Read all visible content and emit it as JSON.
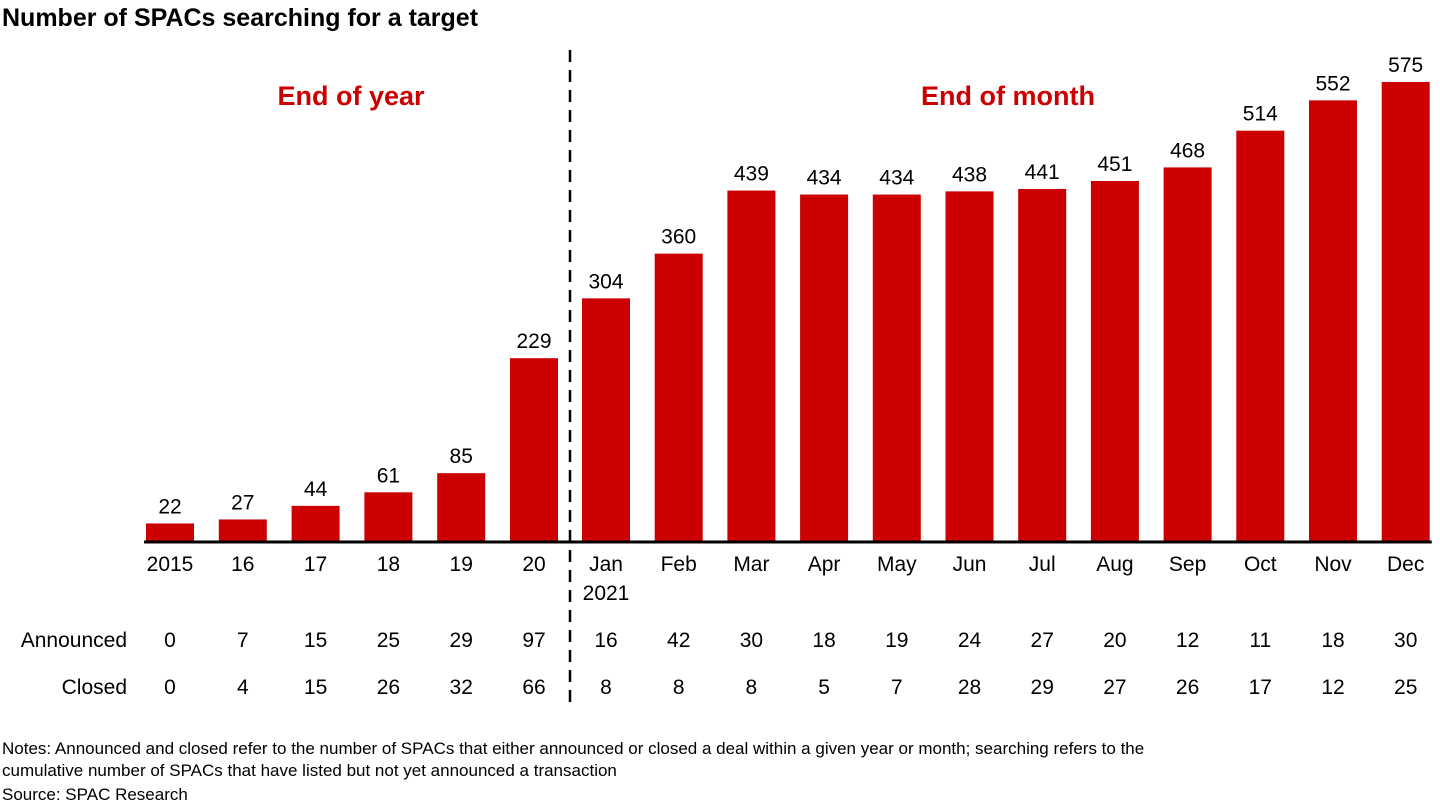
{
  "title": "Number of SPACs searching for a target",
  "colors": {
    "bar": "#cc0000",
    "section_label": "#cc0000",
    "text": "#000000"
  },
  "chart_data": {
    "type": "bar",
    "title": "Number of SPACs searching for a target",
    "xlabel": "",
    "ylabel": "",
    "ylim": [
      0,
      575
    ],
    "grid": false,
    "sections": [
      {
        "label": "End of year",
        "start": 0,
        "end": 5
      },
      {
        "label": "End of month",
        "start": 6,
        "end": 17
      }
    ],
    "categories": [
      "2015",
      "16",
      "17",
      "18",
      "19",
      "20",
      "Jan\n2021",
      "Feb",
      "Mar",
      "Apr",
      "May",
      "Jun",
      "Jul",
      "Aug",
      "Sep",
      "Oct",
      "Nov",
      "Dec"
    ],
    "series": [
      {
        "name": "Searching",
        "values": [
          22,
          27,
          44,
          61,
          85,
          229,
          304,
          360,
          439,
          434,
          434,
          438,
          441,
          451,
          468,
          514,
          552,
          575
        ]
      }
    ],
    "table_rows": [
      {
        "label": "Announced",
        "values": [
          0,
          7,
          15,
          25,
          29,
          97,
          16,
          42,
          30,
          18,
          19,
          24,
          27,
          20,
          12,
          11,
          18,
          30
        ]
      },
      {
        "label": "Closed",
        "values": [
          0,
          4,
          15,
          26,
          32,
          66,
          8,
          8,
          8,
          5,
          7,
          28,
          29,
          27,
          26,
          17,
          12,
          25
        ]
      }
    ]
  },
  "notes": {
    "line1": "Notes: Announced and closed refer to the number of SPACs that either announced or closed a deal within a given year or month; searching refers to the",
    "line2": "cumulative number of SPACs that have listed but not yet announced a transaction",
    "source": "Source: SPAC Research"
  }
}
